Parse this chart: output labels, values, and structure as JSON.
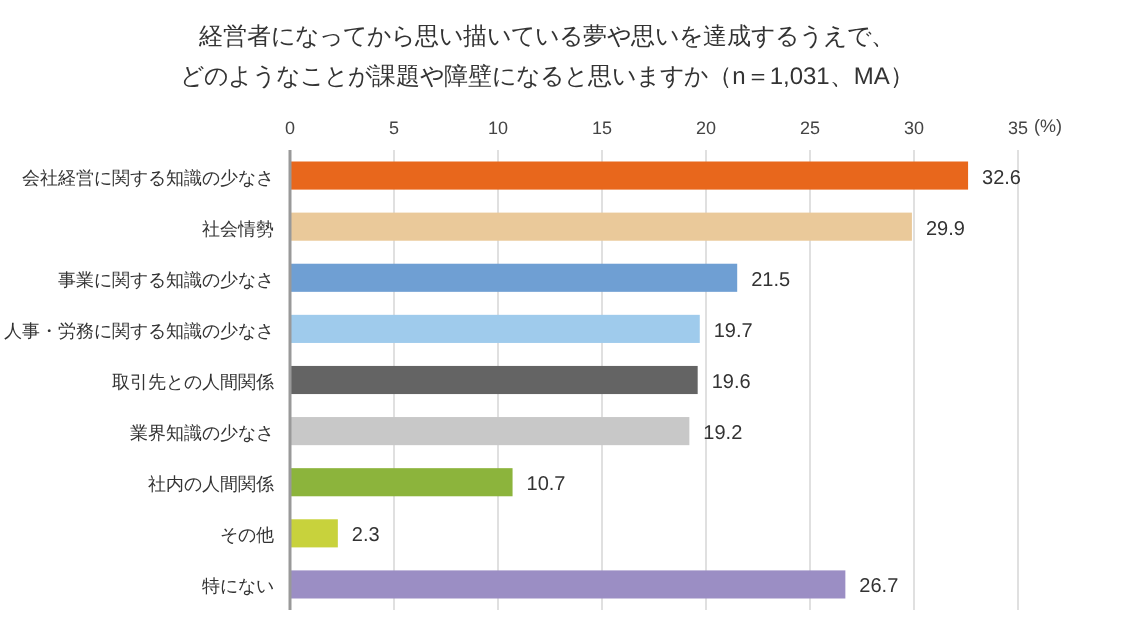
{
  "chart_data": {
    "type": "bar",
    "orientation": "horizontal",
    "title": "経営者になってから思い描いている夢や思いを達成するうえで、",
    "subtitle": "どのようなことが課題や障壁になると思いますか（n＝1,031、MA）",
    "xlabel": "(%)",
    "categories": [
      "会社経営に関する知識の少なさ",
      "社会情勢",
      "事業に関する知識の少なさ",
      "人事・労務に関する知識の少なさ",
      "取引先との人間関係",
      "業界知識の少なさ",
      "社内の人間関係",
      "その他",
      "特にない"
    ],
    "values": [
      32.6,
      29.9,
      21.5,
      19.7,
      19.6,
      19.2,
      10.7,
      2.3,
      26.7
    ],
    "colors": [
      "#e8671c",
      "#eac99a",
      "#6f9fd3",
      "#9fcbec",
      "#646464",
      "#c8c8c8",
      "#8cb43c",
      "#c8d23c",
      "#9b8ec4"
    ],
    "xlim": [
      0,
      35
    ],
    "xticks": [
      0,
      5,
      10,
      15,
      20,
      25,
      30,
      35
    ],
    "grid": "x",
    "data_labels": true
  }
}
